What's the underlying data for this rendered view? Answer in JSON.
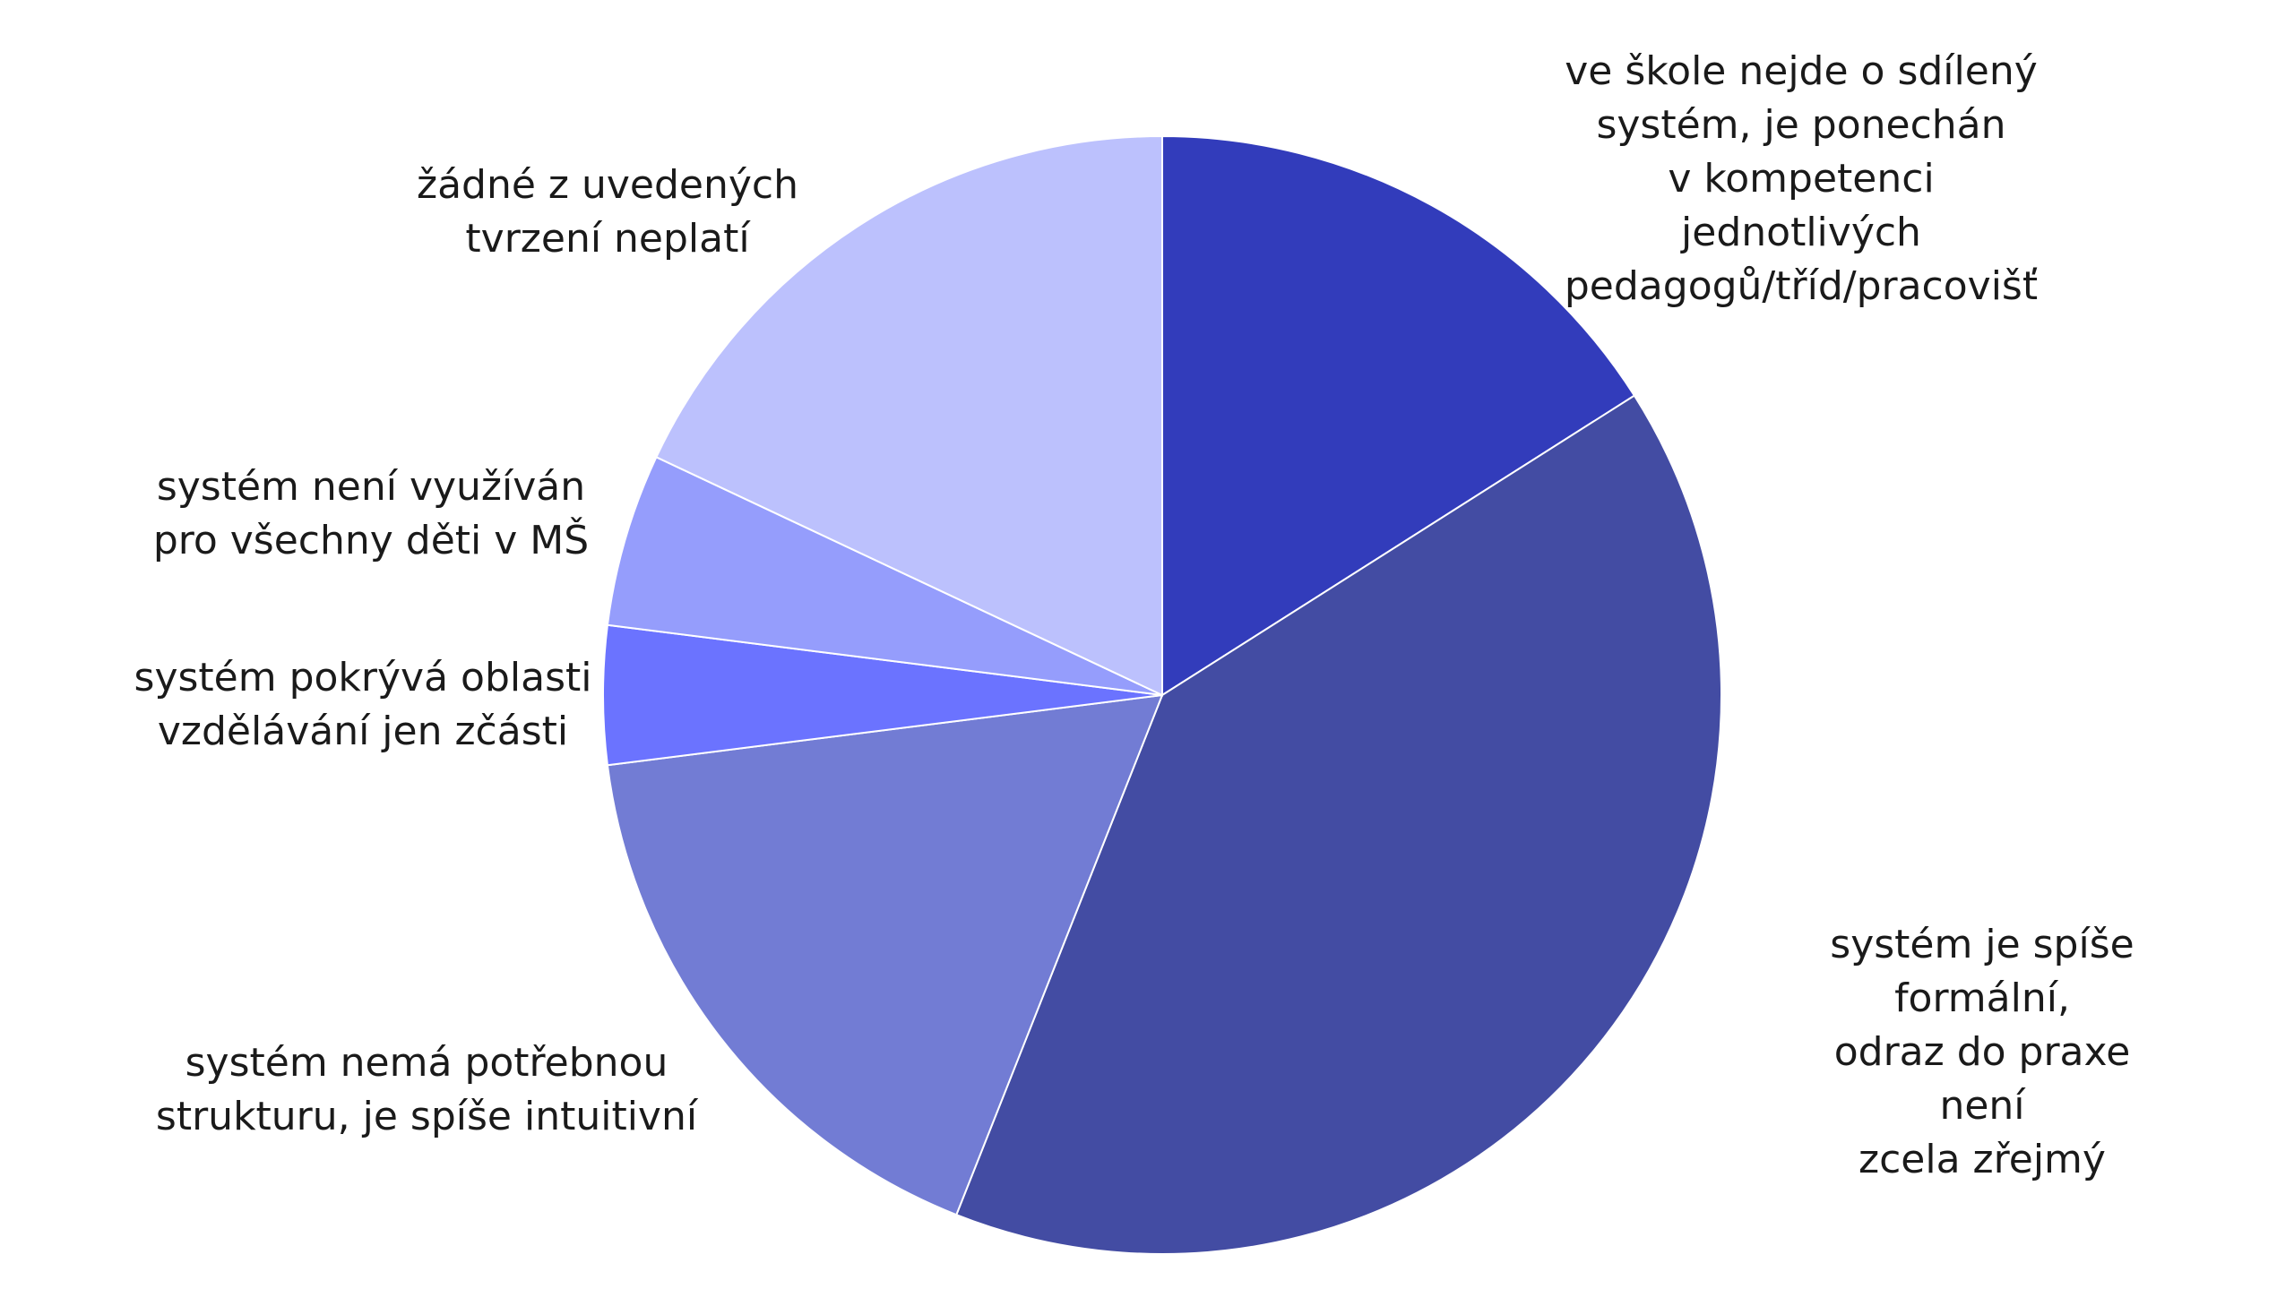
{
  "chart_data": {
    "type": "pie",
    "categories": [
      "ve škole nejde o sdílený\nsystém, je ponechán\nv kompetenci jednotlivých\npedagogů/tříd/pracovišť",
      "systém je spíše formální,\nodraz do praxe není\nzcela zřejmý",
      "systém nemá potřebnou\nstrukturu, je spíše intuitivní",
      "systém pokrývá oblasti\nvzdělávání jen zčásti",
      "systém není využíván\npro všechny děti v MŠ",
      "žádné z uvedených\ntvrzení neplatí"
    ],
    "values": [
      16,
      40,
      17,
      4,
      5,
      18
    ],
    "colors": [
      "#323cbb",
      "#434ca3",
      "#727cd4",
      "#6b73ff",
      "#959dfc",
      "#bcc1fd"
    ]
  }
}
